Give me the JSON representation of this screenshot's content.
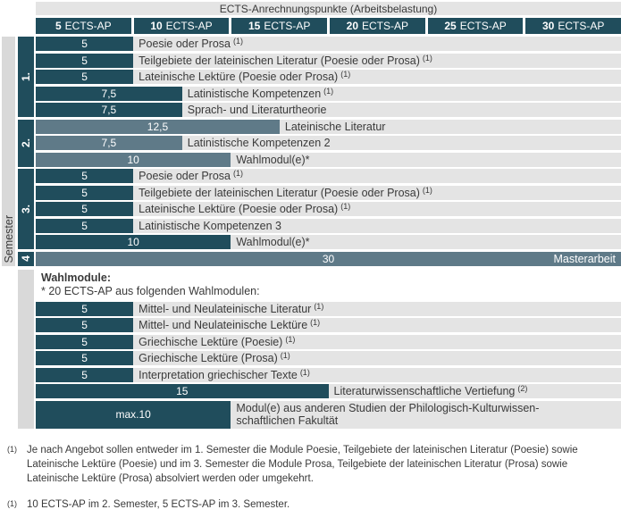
{
  "colors": {
    "bar_dark": "#204d5c",
    "bar_light": "#5f7a88",
    "row_bg": "#e4e4e4",
    "strip_bg": "#d9d9d9",
    "text": "#3a3a3a"
  },
  "header": {
    "title": "ECTS-Anrechnungspunkte (Arbeitsbelastung)",
    "columns": [
      {
        "value": "5",
        "unit": "ECTS-AP"
      },
      {
        "value": "10",
        "unit": "ECTS-AP"
      },
      {
        "value": "15",
        "unit": "ECTS-AP"
      },
      {
        "value": "20",
        "unit": "ECTS-AP"
      },
      {
        "value": "25",
        "unit": "ECTS-AP"
      },
      {
        "value": "30",
        "unit": "ECTS-AP"
      }
    ]
  },
  "semesters": {
    "axis_label": "Semester",
    "groups": [
      {
        "label": "1.",
        "shade": "dark",
        "rows": [
          {
            "value": 5,
            "display": "5",
            "label": "Poesie oder Prosa",
            "sup": "(1)"
          },
          {
            "value": 5,
            "display": "5",
            "label": "Teilgebiete der lateinischen Literatur (Poesie oder Prosa)",
            "sup": "(1)"
          },
          {
            "value": 5,
            "display": "5",
            "label": "Lateinische Lektüre (Poesie oder Prosa)",
            "sup": "(1)"
          },
          {
            "value": 7.5,
            "display": "7,5",
            "label": "Latinistische Kompetenzen",
            "sup": "(1)"
          },
          {
            "value": 7.5,
            "display": "7,5",
            "label": "Sprach- und Literaturtheorie"
          }
        ]
      },
      {
        "label": "2.",
        "shade": "light",
        "rows": [
          {
            "value": 12.5,
            "display": "12,5",
            "label": "Lateinische Literatur"
          },
          {
            "value": 7.5,
            "display": "7,5",
            "label": "Latinistische Kompetenzen 2"
          },
          {
            "value": 10,
            "display": "10",
            "label": "Wahlmodul(e)*"
          }
        ]
      },
      {
        "label": "3.",
        "shade": "dark",
        "rows": [
          {
            "value": 5,
            "display": "5",
            "label": "Poesie oder Prosa",
            "sup": "(1)"
          },
          {
            "value": 5,
            "display": "5",
            "label": "Teilgebiete der lateinischen Literatur (Poesie oder Prosa)",
            "sup": "(1)"
          },
          {
            "value": 5,
            "display": "5",
            "label": "Lateinische Lektüre (Poesie oder Prosa)",
            "sup": "(1)"
          },
          {
            "value": 5,
            "display": "5",
            "label": "Latinistische Kompetenzen 3"
          },
          {
            "value": 10,
            "display": "10",
            "label": "Wahlmodul(e)*"
          }
        ]
      },
      {
        "label": "4",
        "shade": "light",
        "rows": [
          {
            "value": 30,
            "display": "30",
            "label_in_bar": "Masterarbeit"
          }
        ]
      }
    ]
  },
  "wahlmodule": {
    "heading": "Wahlmodule:",
    "subheading": "* 20 ECTS-AP aus folgenden Wahlmodulen:",
    "rows": [
      {
        "value": 5,
        "display": "5",
        "label": "Mittel- und Neulateinische Literatur",
        "sup": "(1)"
      },
      {
        "value": 5,
        "display": "5",
        "label": "Mittel- und Neulateinische Lektüre",
        "sup": "(1)"
      },
      {
        "value": 5,
        "display": "5",
        "label": "Griechische Lektüre (Poesie)",
        "sup": "(1)"
      },
      {
        "value": 5,
        "display": "5",
        "label": "Griechische Lektüre (Prosa)",
        "sup": "(1)"
      },
      {
        "value": 5,
        "display": "5",
        "label": "Interpretation griechischer Texte",
        "sup": "(1)"
      },
      {
        "value": 15,
        "display": "15",
        "label": "Literaturwissenschaftliche Vertiefung",
        "sup": "(2)"
      },
      {
        "value": 10,
        "display": "max.10",
        "label_lines": [
          "Modul(e) aus anderen Studien der Philologisch-Kulturwissen-",
          "schaftlichen Fakultät"
        ]
      }
    ]
  },
  "footnotes": [
    {
      "marker": "(1)",
      "text": "Je nach Angebot sollen entweder im 1. Semester die Module Poesie, Teilgebiete der lateinischen Literatur (Poesie) sowie Lateinische Lektüre (Poesie) und im 3. Semester die Module Prosa, Teilgebiete der lateinischen Literatur (Prosa) sowie Lateinische Lektüre (Prosa) absolviert werden oder umgekehrt."
    },
    {
      "marker": "(1)",
      "text": "10 ECTS-AP im 2. Semester, 5 ECTS-AP im 3. Semester."
    }
  ],
  "chart_data": {
    "type": "bar",
    "orientation": "horizontal",
    "title": "ECTS-Anrechnungspunkte (Arbeitsbelastung)",
    "xlabel": "ECTS-AP",
    "x_ticks": [
      5,
      10,
      15,
      20,
      25,
      30
    ],
    "xlim": [
      0,
      30
    ],
    "ylabel": "Semester",
    "groups": [
      {
        "name": "1. Semester",
        "bars": [
          {
            "label": "Poesie oder Prosa (1)",
            "value": 5
          },
          {
            "label": "Teilgebiete der lateinischen Literatur (Poesie oder Prosa) (1)",
            "value": 5
          },
          {
            "label": "Lateinische Lektüre (Poesie oder Prosa) (1)",
            "value": 5
          },
          {
            "label": "Latinistische Kompetenzen (1)",
            "value": 7.5
          },
          {
            "label": "Sprach- und Literaturtheorie",
            "value": 7.5
          }
        ]
      },
      {
        "name": "2. Semester",
        "bars": [
          {
            "label": "Lateinische Literatur",
            "value": 12.5
          },
          {
            "label": "Latinistische Kompetenzen 2",
            "value": 7.5
          },
          {
            "label": "Wahlmodul(e)*",
            "value": 10
          }
        ]
      },
      {
        "name": "3. Semester",
        "bars": [
          {
            "label": "Poesie oder Prosa (1)",
            "value": 5
          },
          {
            "label": "Teilgebiete der lateinischen Literatur (Poesie oder Prosa) (1)",
            "value": 5
          },
          {
            "label": "Lateinische Lektüre (Poesie oder Prosa) (1)",
            "value": 5
          },
          {
            "label": "Latinistische Kompetenzen 3",
            "value": 5
          },
          {
            "label": "Wahlmodul(e)*",
            "value": 10
          }
        ]
      },
      {
        "name": "4. Semester",
        "bars": [
          {
            "label": "Masterarbeit",
            "value": 30
          }
        ]
      },
      {
        "name": "Wahlmodule (* 20 ECTS-AP aus folgenden Wahlmodulen)",
        "bars": [
          {
            "label": "Mittel- und Neulateinische Literatur (1)",
            "value": 5
          },
          {
            "label": "Mittel- und Neulateinische Lektüre (1)",
            "value": 5
          },
          {
            "label": "Griechische Lektüre (Poesie) (1)",
            "value": 5
          },
          {
            "label": "Griechische Lektüre (Prosa) (1)",
            "value": 5
          },
          {
            "label": "Interpretation griechischer Texte (1)",
            "value": 5
          },
          {
            "label": "Literaturwissenschaftliche Vertiefung (2)",
            "value": 15
          },
          {
            "label": "Modul(e) aus anderen Studien der Philologisch-Kulturwissenschaftlichen Fakultät",
            "value": 10,
            "value_display": "max.10"
          }
        ]
      }
    ]
  }
}
